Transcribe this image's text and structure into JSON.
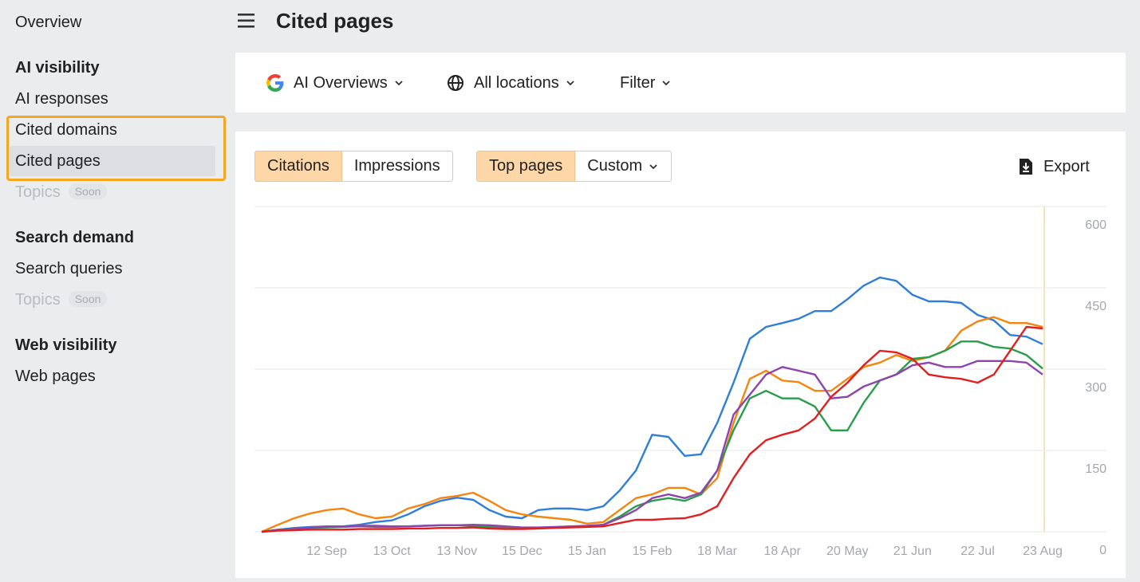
{
  "sidebar": {
    "overview": "Overview",
    "sections": [
      {
        "title": "AI visibility",
        "items": [
          {
            "label": "AI responses"
          },
          {
            "label": "Cited domains"
          },
          {
            "label": "Cited pages",
            "active": true
          },
          {
            "label": "Topics",
            "badge": "Soon",
            "disabled": true
          }
        ]
      },
      {
        "title": "Search demand",
        "items": [
          {
            "label": "Search queries"
          },
          {
            "label": "Topics",
            "badge": "Soon",
            "disabled": true
          }
        ]
      },
      {
        "title": "Web visibility",
        "items": [
          {
            "label": "Web pages"
          }
        ]
      }
    ]
  },
  "header": {
    "title": "Cited pages"
  },
  "toolbar": {
    "filters": [
      "AI Overviews",
      "All locations",
      "Filter"
    ]
  },
  "controls": {
    "metric_tabs": [
      {
        "label": "Citations",
        "active": true
      },
      {
        "label": "Impressions"
      }
    ],
    "page_tabs": [
      {
        "label": "Top pages",
        "active": true
      },
      {
        "label": "Custom",
        "dropdown": true
      }
    ],
    "export": "Export"
  },
  "chart_data": {
    "type": "line",
    "categories": [
      null,
      null,
      null,
      null,
      "12 Sep",
      null,
      null,
      null,
      "13 Oct",
      null,
      null,
      null,
      "13 Nov",
      null,
      null,
      null,
      "15 Dec",
      null,
      null,
      null,
      "15 Jan",
      null,
      null,
      null,
      "15 Feb",
      null,
      null,
      null,
      "18 Mar",
      null,
      null,
      null,
      "18 Apr",
      null,
      null,
      null,
      "20 May",
      null,
      null,
      null,
      "21 Jun",
      null,
      null,
      null,
      "22 Jul",
      null,
      null,
      null,
      "23 Aug"
    ],
    "series": [
      {
        "color": "#2f7ed8",
        "values": [
          0,
          4,
          7,
          9,
          10,
          10,
          13,
          18,
          21,
          32,
          47,
          57,
          63,
          59,
          40,
          28,
          25,
          40,
          43,
          43,
          40,
          47,
          76,
          113,
          179,
          175,
          140,
          143,
          201,
          275,
          356,
          378,
          385,
          393,
          407,
          407,
          429,
          454,
          469,
          463,
          437,
          425,
          425,
          422,
          400,
          390,
          363,
          360,
          346
        ]
      },
      {
        "color": "#f5850f",
        "values": [
          0,
          13,
          25,
          34,
          40,
          43,
          32,
          25,
          28,
          43,
          51,
          62,
          66,
          72,
          57,
          40,
          32,
          28,
          25,
          22,
          15,
          18,
          40,
          62,
          69,
          81,
          81,
          69,
          99,
          201,
          282,
          297,
          279,
          276,
          260,
          260,
          282,
          304,
          312,
          326,
          315,
          322,
          334,
          371,
          388,
          396,
          385,
          385,
          378
        ]
      },
      {
        "color": "#2a9d4b",
        "values": [
          0,
          3,
          5,
          7,
          8,
          9,
          10,
          9,
          9,
          10,
          11,
          12,
          12,
          11,
          9,
          7,
          6,
          7,
          8,
          9,
          10,
          13,
          28,
          47,
          57,
          62,
          57,
          69,
          113,
          187,
          246,
          260,
          246,
          246,
          231,
          187,
          187,
          238,
          279,
          290,
          319,
          322,
          334,
          351,
          351,
          341,
          338,
          326,
          301
        ]
      },
      {
        "color": "#8e44ad",
        "values": [
          0,
          3,
          5,
          8,
          9,
          10,
          11,
          11,
          10,
          10,
          11,
          12,
          12,
          13,
          12,
          10,
          8,
          8,
          9,
          10,
          11,
          13,
          25,
          40,
          62,
          69,
          62,
          72,
          113,
          216,
          253,
          290,
          304,
          297,
          290,
          246,
          249,
          268,
          279,
          290,
          307,
          312,
          304,
          304,
          315,
          315,
          315,
          312,
          290
        ]
      },
      {
        "color": "#e02020",
        "values": [
          0,
          2,
          3,
          4,
          4,
          4,
          5,
          5,
          5,
          6,
          6,
          7,
          7,
          8,
          6,
          5,
          5,
          6,
          7,
          8,
          9,
          10,
          16,
          22,
          22,
          24,
          25,
          32,
          47,
          99,
          143,
          169,
          179,
          187,
          209,
          249,
          275,
          307,
          334,
          331,
          319,
          290,
          285,
          282,
          275,
          290,
          334,
          378,
          375
        ]
      }
    ],
    "ylim": [
      0,
      600
    ],
    "yticks": [
      0,
      150,
      300,
      450,
      600
    ],
    "grid": true,
    "y_axis_side": "right"
  }
}
